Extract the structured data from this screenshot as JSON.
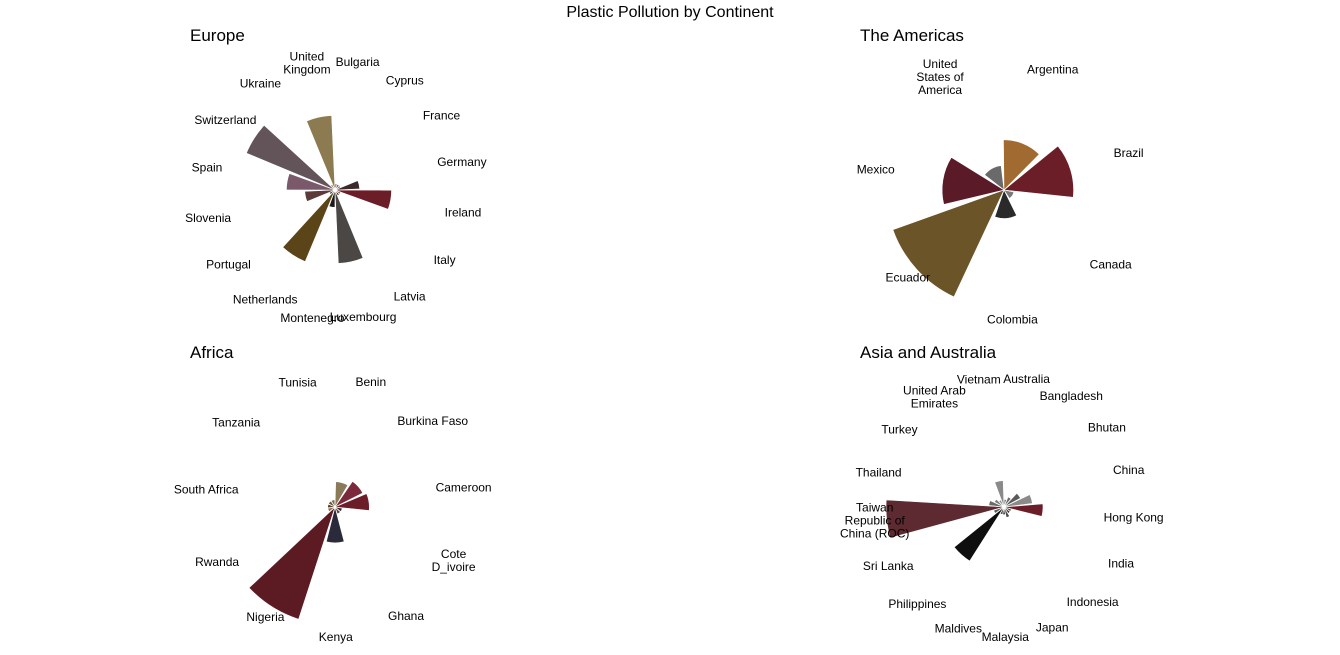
{
  "title": "Plastic Pollution by Continent",
  "chart_data": [
    {
      "type": "polar-bar",
      "title": "Europe",
      "categories": [
        "Bulgaria",
        "Cyprus",
        "France",
        "Germany",
        "Ireland",
        "Italy",
        "Latvia",
        "Luxembourg",
        "Montenegro",
        "Netherlands",
        "Portugal",
        "Slovenia",
        "Spain",
        "Switzerland",
        "Ukraine",
        "United Kingdom"
      ],
      "values": [
        0.5,
        0.5,
        0.5,
        8,
        42,
        0.5,
        0.5,
        71,
        4,
        79,
        0.5,
        12,
        31,
        121,
        0.5,
        73
      ],
      "colors": [
        "#7a5a3a",
        "#8a2b3a",
        "#7a6a9a",
        "#3a2a2a",
        "#6b1e28",
        "#8a5a3a",
        "#3a1a1a",
        "#4a4744",
        "#1a1a1a",
        "#5a4418",
        "#2a2a3a",
        "#5c3a38",
        "#7a5a6a",
        "#625458",
        "#a08060",
        "#8c7a50"
      ]
    },
    {
      "type": "polar-bar",
      "title": "The Americas",
      "categories": [
        "Argentina",
        "Brazil",
        "Canada",
        "Colombia",
        "Ecuador",
        "Mexico",
        "United States of America"
      ],
      "values": [
        25,
        48,
        1,
        8,
        138,
        38,
        6
      ],
      "colors": [
        "#a06a30",
        "#6b1e28",
        "#7a7a7a",
        "#2a2a2a",
        "#6b5528",
        "#5a1a28",
        "#6a6a6a"
      ]
    },
    {
      "type": "polar-bar",
      "title": "Africa",
      "categories": [
        "Benin",
        "Burkina Faso",
        "Cameroon",
        "Cote D_ivoire",
        "Ghana",
        "Kenya",
        "Nigeria",
        "Rwanda",
        "South Africa",
        "Tanzania",
        "Tunisia"
      ],
      "values": [
        6,
        9,
        11,
        0.5,
        0.5,
        12,
        130,
        0.5,
        0.5,
        0.5,
        0.5
      ],
      "colors": [
        "#8a7a5a",
        "#7a2a3a",
        "#6b1e28",
        "#3a2a2a",
        "#5a4a3a",
        "#2a2a3a",
        "#5c1a22",
        "#8a6a4a",
        "#5a3a2a",
        "#6a5a3a",
        "#7a6a4a"
      ]
    },
    {
      "type": "polar-bar",
      "title": "Asia and Australia",
      "categories": [
        "Australia",
        "Bangladesh",
        "Bhutan",
        "China",
        "Hong Kong",
        "India",
        "Indonesia",
        "Japan",
        "Malaysia",
        "Maldives",
        "Philippines",
        "Sri Lanka",
        "Taiwan Republic of China (ROC)",
        "Thailand",
        "Turkey",
        "United Arab Emirates",
        "Vietnam"
      ],
      "values": [
        0.5,
        1,
        3,
        7,
        13,
        0.5,
        0.5,
        1,
        0.5,
        0.5,
        35,
        1,
        119,
        2,
        1,
        0.5,
        6
      ],
      "colors": [
        "#7a7a7a",
        "#6a6a6a",
        "#5a5a5a",
        "#8a8a8a",
        "#6b1e28",
        "#5a3a2a",
        "#3a2a2a",
        "#4a4a4a",
        "#2a2a2a",
        "#3a3a3a",
        "#0e0e0e",
        "#5a5a5a",
        "#5c2a30",
        "#6a6a6a",
        "#7a7a7a",
        "#8a8a8a",
        "#8a8a8a"
      ]
    }
  ]
}
